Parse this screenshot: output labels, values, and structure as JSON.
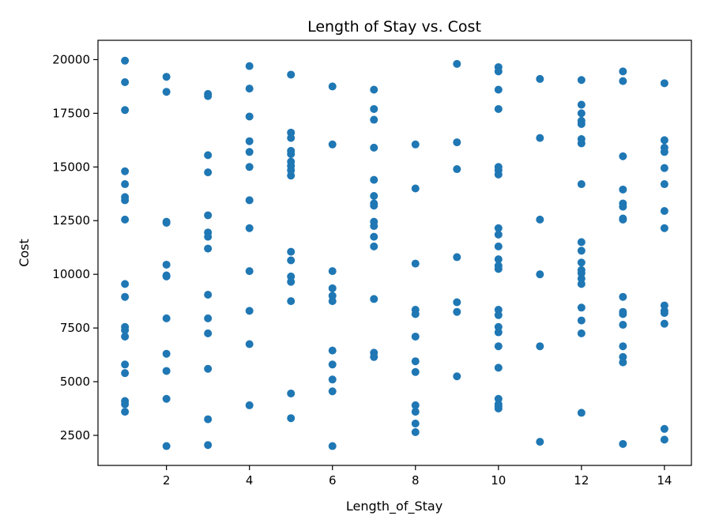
{
  "chart_data": {
    "type": "scatter",
    "title": "Length of Stay vs. Cost",
    "xlabel": "Length_of_Stay",
    "ylabel": "Cost",
    "xlim": [
      0.35,
      14.65
    ],
    "ylim": [
      1100,
      20900
    ],
    "xticks": [
      2,
      4,
      6,
      8,
      10,
      12,
      14
    ],
    "yticks": [
      2500,
      5000,
      7500,
      10000,
      12500,
      15000,
      17500,
      20000
    ],
    "grid": false,
    "color": "#1f77b4",
    "series": [
      {
        "points": [
          [
            1,
            19950
          ],
          [
            1,
            18950
          ],
          [
            1,
            17650
          ],
          [
            1,
            14800
          ],
          [
            1,
            14200
          ],
          [
            1,
            13600
          ],
          [
            1,
            13450
          ],
          [
            1,
            12550
          ],
          [
            1,
            9550
          ],
          [
            1,
            8950
          ],
          [
            1,
            7550
          ],
          [
            1,
            7400
          ],
          [
            1,
            7100
          ],
          [
            1,
            5800
          ],
          [
            1,
            5400
          ],
          [
            1,
            4100
          ],
          [
            1,
            3950
          ],
          [
            1,
            3600
          ],
          [
            2,
            19200
          ],
          [
            2,
            18500
          ],
          [
            2,
            12450
          ],
          [
            2,
            12400
          ],
          [
            2,
            10450
          ],
          [
            2,
            9950
          ],
          [
            2,
            9900
          ],
          [
            2,
            7950
          ],
          [
            2,
            6300
          ],
          [
            2,
            5500
          ],
          [
            2,
            4200
          ],
          [
            2,
            2000
          ],
          [
            3,
            18400
          ],
          [
            3,
            18300
          ],
          [
            3,
            15550
          ],
          [
            3,
            14750
          ],
          [
            3,
            12750
          ],
          [
            3,
            11950
          ],
          [
            3,
            11750
          ],
          [
            3,
            11200
          ],
          [
            3,
            9050
          ],
          [
            3,
            7950
          ],
          [
            3,
            7250
          ],
          [
            3,
            5600
          ],
          [
            3,
            3250
          ],
          [
            3,
            2050
          ],
          [
            4,
            19700
          ],
          [
            4,
            18650
          ],
          [
            4,
            17350
          ],
          [
            4,
            16200
          ],
          [
            4,
            15700
          ],
          [
            4,
            15000
          ],
          [
            4,
            13450
          ],
          [
            4,
            12150
          ],
          [
            4,
            10150
          ],
          [
            4,
            8300
          ],
          [
            4,
            6750
          ],
          [
            4,
            3900
          ],
          [
            5,
            19300
          ],
          [
            5,
            16600
          ],
          [
            5,
            16350
          ],
          [
            5,
            15750
          ],
          [
            5,
            15600
          ],
          [
            5,
            15250
          ],
          [
            5,
            15050
          ],
          [
            5,
            14850
          ],
          [
            5,
            14600
          ],
          [
            5,
            11050
          ],
          [
            5,
            10650
          ],
          [
            5,
            9900
          ],
          [
            5,
            9650
          ],
          [
            5,
            8750
          ],
          [
            5,
            4450
          ],
          [
            5,
            3300
          ],
          [
            6,
            18750
          ],
          [
            6,
            16050
          ],
          [
            6,
            10150
          ],
          [
            6,
            9350
          ],
          [
            6,
            9000
          ],
          [
            6,
            8750
          ],
          [
            6,
            6450
          ],
          [
            6,
            5800
          ],
          [
            6,
            5100
          ],
          [
            6,
            4550
          ],
          [
            6,
            2000
          ],
          [
            7,
            18600
          ],
          [
            7,
            17700
          ],
          [
            7,
            17200
          ],
          [
            7,
            15900
          ],
          [
            7,
            14400
          ],
          [
            7,
            13650
          ],
          [
            7,
            13300
          ],
          [
            7,
            13200
          ],
          [
            7,
            12450
          ],
          [
            7,
            12250
          ],
          [
            7,
            11750
          ],
          [
            7,
            11300
          ],
          [
            7,
            8850
          ],
          [
            7,
            6350
          ],
          [
            7,
            6150
          ],
          [
            8,
            16050
          ],
          [
            8,
            14000
          ],
          [
            8,
            10500
          ],
          [
            8,
            8350
          ],
          [
            8,
            8150
          ],
          [
            8,
            7100
          ],
          [
            8,
            5950
          ],
          [
            8,
            5450
          ],
          [
            8,
            3900
          ],
          [
            8,
            3600
          ],
          [
            8,
            3050
          ],
          [
            8,
            2650
          ],
          [
            9,
            19800
          ],
          [
            9,
            16150
          ],
          [
            9,
            14900
          ],
          [
            9,
            10800
          ],
          [
            9,
            8700
          ],
          [
            9,
            8250
          ],
          [
            9,
            5250
          ],
          [
            10,
            19650
          ],
          [
            10,
            19450
          ],
          [
            10,
            18600
          ],
          [
            10,
            17700
          ],
          [
            10,
            15000
          ],
          [
            10,
            14850
          ],
          [
            10,
            14650
          ],
          [
            10,
            12150
          ],
          [
            10,
            11850
          ],
          [
            10,
            11300
          ],
          [
            10,
            10700
          ],
          [
            10,
            10400
          ],
          [
            10,
            10250
          ],
          [
            10,
            8350
          ],
          [
            10,
            8100
          ],
          [
            10,
            7550
          ],
          [
            10,
            7300
          ],
          [
            10,
            6650
          ],
          [
            10,
            5650
          ],
          [
            10,
            4200
          ],
          [
            10,
            3950
          ],
          [
            10,
            3850
          ],
          [
            10,
            3750
          ],
          [
            11,
            19100
          ],
          [
            11,
            16350
          ],
          [
            11,
            12550
          ],
          [
            11,
            10000
          ],
          [
            11,
            6650
          ],
          [
            11,
            2200
          ],
          [
            12,
            19050
          ],
          [
            12,
            17900
          ],
          [
            12,
            17500
          ],
          [
            12,
            17150
          ],
          [
            12,
            17000
          ],
          [
            12,
            16300
          ],
          [
            12,
            16100
          ],
          [
            12,
            14200
          ],
          [
            12,
            11500
          ],
          [
            12,
            11100
          ],
          [
            12,
            10550
          ],
          [
            12,
            10200
          ],
          [
            12,
            10050
          ],
          [
            12,
            9800
          ],
          [
            12,
            9550
          ],
          [
            12,
            8450
          ],
          [
            12,
            7850
          ],
          [
            12,
            7250
          ],
          [
            12,
            3550
          ],
          [
            13,
            19450
          ],
          [
            13,
            19000
          ],
          [
            13,
            15500
          ],
          [
            13,
            13950
          ],
          [
            13,
            13300
          ],
          [
            13,
            13150
          ],
          [
            13,
            12600
          ],
          [
            13,
            12550
          ],
          [
            13,
            8950
          ],
          [
            13,
            8250
          ],
          [
            13,
            8150
          ],
          [
            13,
            7650
          ],
          [
            13,
            6650
          ],
          [
            13,
            6150
          ],
          [
            13,
            5900
          ],
          [
            13,
            2100
          ],
          [
            14,
            18900
          ],
          [
            14,
            16250
          ],
          [
            14,
            15900
          ],
          [
            14,
            15700
          ],
          [
            14,
            14950
          ],
          [
            14,
            14200
          ],
          [
            14,
            12950
          ],
          [
            14,
            12150
          ],
          [
            14,
            8550
          ],
          [
            14,
            8300
          ],
          [
            14,
            8200
          ],
          [
            14,
            7700
          ],
          [
            14,
            2800
          ],
          [
            14,
            2300
          ]
        ]
      }
    ]
  }
}
